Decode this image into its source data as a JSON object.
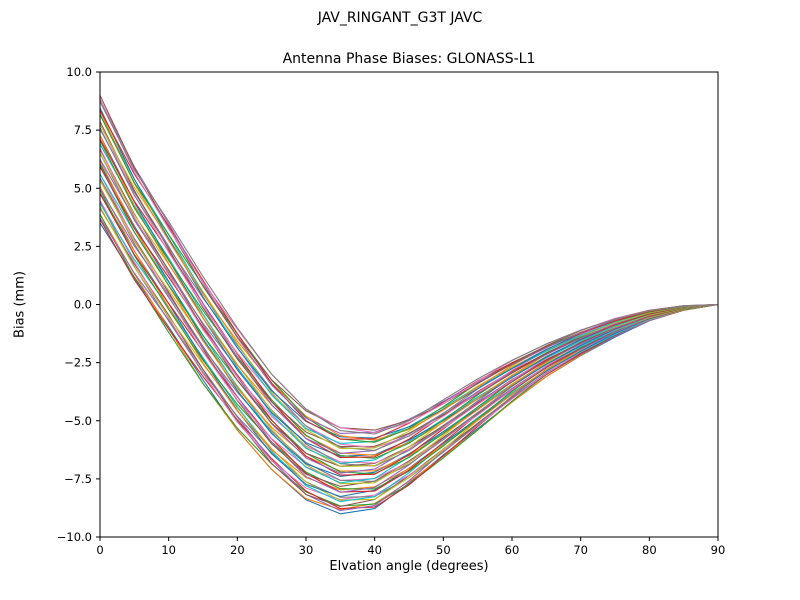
{
  "figure": {
    "suptitle": "JAV_RINGANT_G3T JAVC",
    "axes_title": "Antenna Phase Biases: GLONASS-L1"
  },
  "chart_data": {
    "type": "line",
    "suptitle": "JAV_RINGANT_G3T JAVC",
    "title": "Antenna Phase Biases: GLONASS-L1",
    "xlabel": "Elvation angle (degrees)",
    "ylabel": "Bias (mm)",
    "xlim": [
      0,
      90
    ],
    "ylim": [
      -10,
      10
    ],
    "grid": false,
    "legend": "none",
    "xticks": [
      0,
      10,
      20,
      30,
      40,
      50,
      60,
      70,
      80,
      90
    ],
    "xtick_labels": [
      "0",
      "10",
      "20",
      "30",
      "40",
      "50",
      "60",
      "70",
      "80",
      "90"
    ],
    "yticks": [
      10,
      7.5,
      5,
      2.5,
      0,
      -2.5,
      -5,
      -7.5,
      -10
    ],
    "ytick_labels": [
      "10.0",
      "7.5",
      "5.0",
      "2.5",
      "0.0",
      "−2.5",
      "−5.0",
      "−7.5",
      "−10.0"
    ],
    "x": [
      0,
      5,
      10,
      15,
      20,
      25,
      30,
      35,
      40,
      45,
      50,
      55,
      60,
      65,
      70,
      75,
      80,
      85,
      90
    ],
    "envelope_upper": [
      9.0,
      6.0,
      3.6,
      1.2,
      -1.0,
      -3.0,
      -4.5,
      -5.3,
      -5.4,
      -4.9,
      -4.1,
      -3.2,
      -2.4,
      -1.7,
      -1.1,
      -0.6,
      -0.25,
      -0.05,
      0.0
    ],
    "envelope_lower": [
      3.5,
      1.0,
      -1.2,
      -3.4,
      -5.4,
      -7.1,
      -8.4,
      -9.0,
      -8.8,
      -7.8,
      -6.6,
      -5.4,
      -4.2,
      -3.1,
      -2.2,
      -1.4,
      -0.7,
      -0.25,
      0.0
    ],
    "n_lines": 48,
    "palette": [
      "#1f77b4",
      "#ff7f0e",
      "#2ca02c",
      "#d62728",
      "#9467bd",
      "#8c564b",
      "#e377c2",
      "#7f7f7f",
      "#bcbd22",
      "#17becf"
    ],
    "axes_color": "#000000",
    "background_color": "#ffffff"
  }
}
